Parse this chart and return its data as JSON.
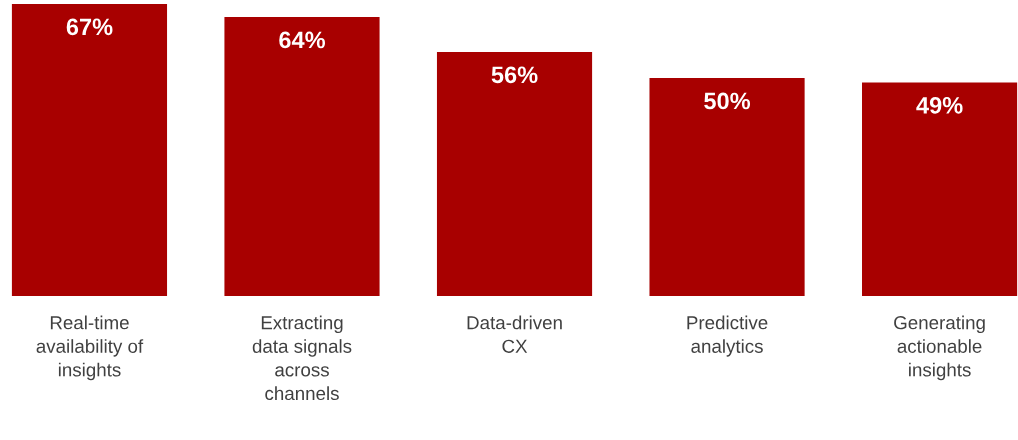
{
  "chart_data": {
    "type": "bar",
    "categories": [
      "Real-time\navailability of\ninsights",
      "Extracting\ndata signals\nacross\nchannels",
      "Data-driven\nCX",
      "Predictive\nanalytics",
      "Generating\nactionable\ninsights"
    ],
    "values": [
      67,
      64,
      56,
      50,
      49
    ],
    "value_labels": [
      "67%",
      "64%",
      "56%",
      "50%",
      "49%"
    ],
    "color": "#a80000",
    "grid": false,
    "legend": false
  }
}
